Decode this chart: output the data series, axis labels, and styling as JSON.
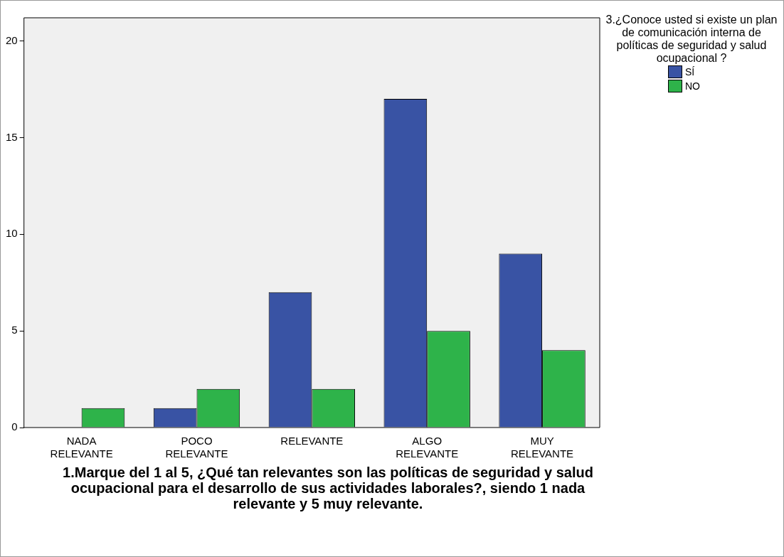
{
  "chart_data": {
    "type": "bar",
    "xlabel": "1.Marque del 1 al 5, ¿Qué tan relevantes son las políticas de seguridad y salud ocupacional para el desarrollo de sus actividades laborales?, siendo 1 nada relevante y 5 muy relevante.",
    "legend_title": "3.¿Conoce usted si existe un plan de comunicación interna de políticas de seguridad y salud ocupacional ?",
    "categories": [
      "NADA RELEVANTE",
      "POCO RELEVANTE",
      "RELEVANTE",
      "ALGO RELEVANTE",
      "MUY RELEVANTE"
    ],
    "series": [
      {
        "name": "SÍ",
        "color": "#3953a4",
        "values": [
          0,
          1,
          7,
          17,
          9
        ]
      },
      {
        "name": "NO",
        "color": "#2eb34a",
        "values": [
          1,
          2,
          2,
          5,
          4
        ]
      }
    ],
    "ylim": [
      0,
      21.2
    ],
    "yticks": [
      0,
      5,
      10,
      15,
      20
    ],
    "grid": false,
    "legend": "right"
  }
}
